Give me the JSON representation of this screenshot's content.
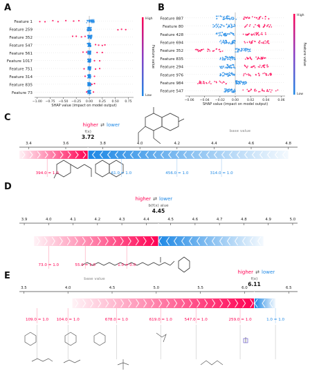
{
  "panel_labels": [
    "A",
    "B",
    "C",
    "D",
    "E"
  ],
  "colors": {
    "high": "#ff0052",
    "low": "#1e88e5",
    "low_light": "#a6cef5",
    "high_light": "#ff9db5",
    "axis": "#444444",
    "text": "#222222"
  },
  "chart_data": [
    {
      "panel": "A",
      "type": "scatter",
      "chart_kind": "shap-beeswarm",
      "features": [
        "Feature 1",
        "Feature 259",
        "Feature 352",
        "Feature 547",
        "Feature 561",
        "Feature 1017",
        "Feature 751",
        "Feature 314",
        "Feature 835",
        "Feature 73"
      ],
      "xlabel": "SHAP value (impact on model output)",
      "xlim": [
        -1.05,
        0.85
      ],
      "xticks": [
        -1.0,
        -0.75,
        -0.5,
        -0.25,
        0.0,
        0.25,
        0.5,
        0.75
      ],
      "xtick_labels": [
        "−1.00",
        "−0.75",
        "−0.50",
        "−0.25",
        "0.00",
        "0.25",
        "0.50",
        "0.75"
      ],
      "colorbar": {
        "title": "Feature value",
        "high": "High",
        "low": "Low"
      },
      "series": [
        {
          "feature": "Feature 1",
          "high_x": [
            -0.95,
            -0.85,
            -0.7,
            -0.6,
            -0.45,
            -0.3,
            -0.2
          ],
          "low_range": [
            -0.05,
            0.1
          ]
        },
        {
          "feature": "Feature 259",
          "high_x": [
            0.55,
            0.62,
            0.7
          ],
          "low_range": [
            -0.04,
            0.04
          ]
        },
        {
          "feature": "Feature 352",
          "high_x": [
            -0.32,
            -0.25,
            -0.15,
            -0.08
          ],
          "low_range": [
            -0.03,
            0.05
          ]
        },
        {
          "feature": "Feature 547",
          "high_x": [
            0.12,
            0.18,
            0.25,
            0.3
          ],
          "low_range": [
            -0.04,
            0.03
          ]
        },
        {
          "feature": "Feature 561",
          "high_x": [
            -0.12,
            -0.05,
            0.15,
            0.25
          ],
          "low_range": [
            -0.03,
            0.03
          ]
        },
        {
          "feature": "Feature 1017",
          "high_x": [
            0.1,
            0.2
          ],
          "low_range": [
            -0.03,
            0.03
          ]
        },
        {
          "feature": "Feature 751",
          "high_x": [
            -0.1,
            0.12,
            0.2
          ],
          "low_range": [
            -0.03,
            0.03
          ]
        },
        {
          "feature": "Feature 314",
          "high_x": [
            -0.08,
            0.1
          ],
          "low_range": [
            -0.03,
            0.03
          ]
        },
        {
          "feature": "Feature 835",
          "high_x": [
            0.05,
            0.1
          ],
          "low_range": [
            -0.03,
            0.03
          ]
        },
        {
          "feature": "Feature 73",
          "high_x": [
            -0.05,
            0.08
          ],
          "low_range": [
            -0.03,
            0.03
          ]
        }
      ]
    },
    {
      "panel": "B",
      "type": "scatter",
      "chart_kind": "shap-beeswarm",
      "features": [
        "Feature 887",
        "Feature 80",
        "Feature 428",
        "Feature 694",
        "Feature 352",
        "Feature 835",
        "Feature 294",
        "Feature 976",
        "Feature 984",
        "Feature 547"
      ],
      "xlabel": "SHAP value (impact on model output)",
      "xlim": [
        -0.065,
        0.065
      ],
      "xticks": [
        -0.06,
        -0.04,
        -0.02,
        0.0,
        0.02,
        0.04,
        0.06
      ],
      "xtick_labels": [
        "−0.06",
        "−0.04",
        "−0.02",
        "0.00",
        "0.02",
        "0.04",
        "0.06"
      ],
      "colorbar": {
        "title": "Feature value",
        "high": "High",
        "low": "Low"
      },
      "series": [
        {
          "feature": "Feature 887",
          "high_range": [
            0.01,
            0.045
          ],
          "low_range": [
            -0.025,
            0.002
          ]
        },
        {
          "feature": "Feature 80",
          "high_range": [
            0.012,
            0.048
          ],
          "low_range": [
            -0.03,
            0.0
          ]
        },
        {
          "feature": "Feature 428",
          "high_range": [
            0.01,
            0.04
          ],
          "low_range": [
            -0.025,
            0.0
          ]
        },
        {
          "feature": "Feature 694",
          "high_range": [
            0.012,
            0.045
          ],
          "low_range": [
            -0.02,
            0.0
          ]
        },
        {
          "feature": "Feature 352",
          "high_range": [
            -0.055,
            -0.015
          ],
          "low_range": [
            0.0,
            0.02
          ]
        },
        {
          "feature": "Feature 835",
          "high_range": [
            0.01,
            0.04
          ],
          "low_range": [
            -0.02,
            0.0
          ]
        },
        {
          "feature": "Feature 294",
          "high_range": [
            0.01,
            0.045
          ],
          "low_range": [
            -0.02,
            0.0
          ]
        },
        {
          "feature": "Feature 976",
          "high_range": [
            0.01,
            0.05
          ],
          "low_range": [
            -0.02,
            0.0
          ]
        },
        {
          "feature": "Feature 984",
          "high_range": [
            -0.05,
            -0.01
          ],
          "low_range": [
            0.0,
            0.015
          ]
        },
        {
          "feature": "Feature 547",
          "high_range": [
            0.01,
            0.06
          ],
          "low_range": [
            -0.015,
            0.0
          ]
        }
      ]
    },
    {
      "panel": "C",
      "type": "bar",
      "chart_kind": "shap-force",
      "higher_label": "higher",
      "lower_label": "lower",
      "arrows": "⇄",
      "fx_label": "f(x)",
      "fx_value": "3.72",
      "fx": 3.72,
      "base_label": "base value",
      "base_value": 4.54,
      "xlim": [
        3.35,
        4.85
      ],
      "xticks": [
        3.4,
        3.6,
        3.8,
        4.0,
        4.2,
        4.4,
        4.6,
        4.8
      ],
      "xtick_labels": [
        "3.4",
        "3.6",
        "3.8",
        "4.0",
        "4.2",
        "4.4",
        "4.6",
        "4.8"
      ],
      "push_higher_start": 3.35,
      "push_lower_end": 4.8,
      "feature_labels": [
        "394.0 = 1.0",
        "61.0 = 1.0",
        "456.0 = 1.0",
        "314.0 = 1.0"
      ],
      "feature_label_positions": [
        3.5,
        3.9,
        4.2,
        4.44
      ],
      "feature_label_colors": [
        "high",
        "low",
        "low",
        "low"
      ]
    },
    {
      "panel": "D",
      "type": "bar",
      "chart_kind": "shap-force",
      "higher_label": "higher",
      "lower_label": "lower",
      "arrows": "⇄",
      "fx_label": "b(f(x) alue",
      "fx_value": "4.45",
      "fx": 4.45,
      "xlim": [
        3.88,
        5.02
      ],
      "xticks": [
        3.9,
        4.0,
        4.1,
        4.2,
        4.3,
        4.4,
        4.5,
        4.6,
        4.7,
        4.8,
        4.9,
        5.0
      ],
      "xtick_labels": [
        "3.9",
        "4.0",
        "4.1",
        "4.2",
        "4.3",
        "4.4",
        "4.5",
        "4.6",
        "4.7",
        "4.8",
        "4.9",
        "5.0"
      ],
      "push_higher_start": 3.94,
      "push_lower_end": 4.88,
      "feature_labels": [
        "73.0 = 1.0",
        "55.0 = 1.0",
        "1.0 = 0.0"
      ],
      "feature_label_positions": [
        4.0,
        4.15,
        4.32
      ],
      "feature_label_colors": [
        "high",
        "high",
        "high"
      ]
    },
    {
      "panel": "E",
      "type": "bar",
      "chart_kind": "shap-force",
      "higher_label": "higher",
      "lower_label": "lower",
      "arrows": "⇄",
      "fx_label": "f(x)",
      "fx_value": "6.11",
      "fx": 6.11,
      "base_label": "base value",
      "base_value": 4.3,
      "xlim": [
        3.45,
        6.6
      ],
      "xticks": [
        3.5,
        4.0,
        4.5,
        5.0,
        5.5,
        6.0,
        6.5
      ],
      "xtick_labels": [
        "3.5",
        "4.0",
        "4.5",
        "5.0",
        "5.5",
        "6.0",
        "6.5"
      ],
      "push_higher_start": 4.05,
      "push_lower_end": 6.35,
      "feature_labels": [
        "109.0 = 1.0",
        "104.0 = 1.0",
        "678.0 = 1.0",
        "619.0 = 1.0",
        "547.0 = 1.0",
        "259.0 = 1.0",
        "1.0 = 1.0"
      ],
      "feature_label_positions": [
        3.65,
        4.0,
        4.55,
        5.05,
        5.45,
        5.95,
        6.35
      ],
      "feature_label_colors": [
        "high",
        "high",
        "high",
        "high",
        "high",
        "high",
        "low"
      ]
    }
  ]
}
